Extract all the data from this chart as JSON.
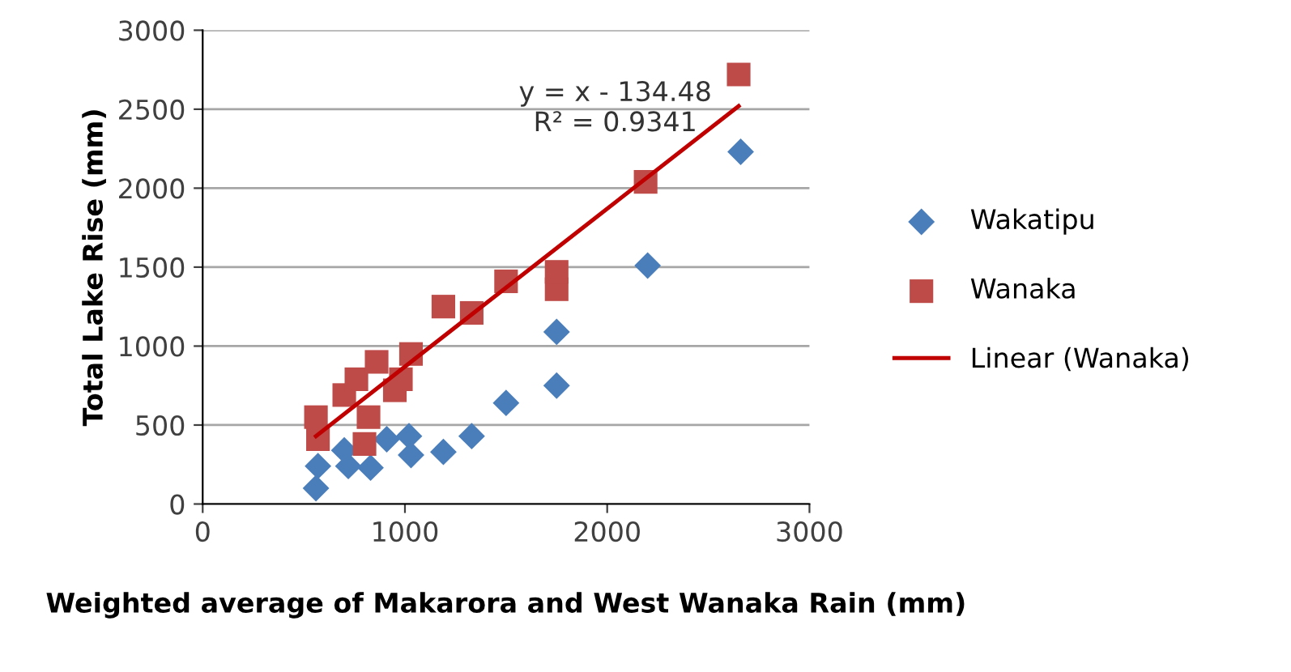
{
  "chart_data": {
    "type": "scatter",
    "xlabel": "Weighted average of Makarora and West Wanaka Rain (mm)",
    "ylabel": "Total Lake Rise (mm)",
    "xlim": [
      0,
      3000
    ],
    "xticks": [
      0,
      1000,
      2000,
      3000
    ],
    "ylim": [
      0,
      3000
    ],
    "yticks": [
      0,
      500,
      1000,
      1500,
      2000,
      2500,
      3000
    ],
    "grid": "y",
    "legend": "right",
    "annotations": [
      "y = x - 134.48\nR² = 0.9341"
    ],
    "series": [
      {
        "name": "Wakatipu",
        "color": "#4a7ebb",
        "marker": "diamond",
        "x": [
          560,
          570,
          700,
          720,
          830,
          910,
          1020,
          1030,
          1190,
          1330,
          1500,
          1750,
          1750,
          2200,
          2660
        ],
        "values": [
          100,
          240,
          340,
          240,
          230,
          410,
          430,
          310,
          330,
          430,
          640,
          750,
          1090,
          1510,
          2230
        ]
      },
      {
        "name": "Wanaka",
        "color": "#be4b48",
        "marker": "square",
        "x": [
          560,
          570,
          700,
          760,
          860,
          800,
          820,
          950,
          980,
          1030,
          1190,
          1330,
          1500,
          1750,
          1750,
          2190,
          2650
        ],
        "values": [
          550,
          410,
          690,
          790,
          900,
          380,
          550,
          720,
          790,
          950,
          1250,
          1210,
          1410,
          1360,
          1470,
          2040,
          2720
        ]
      },
      {
        "name": "Linear (Wanaka)",
        "type": "line",
        "color": "#c00000",
        "marker": "none",
        "line_style": "solid",
        "x": [
          560,
          2650
        ],
        "values": [
          430,
          2520
        ]
      }
    ]
  }
}
